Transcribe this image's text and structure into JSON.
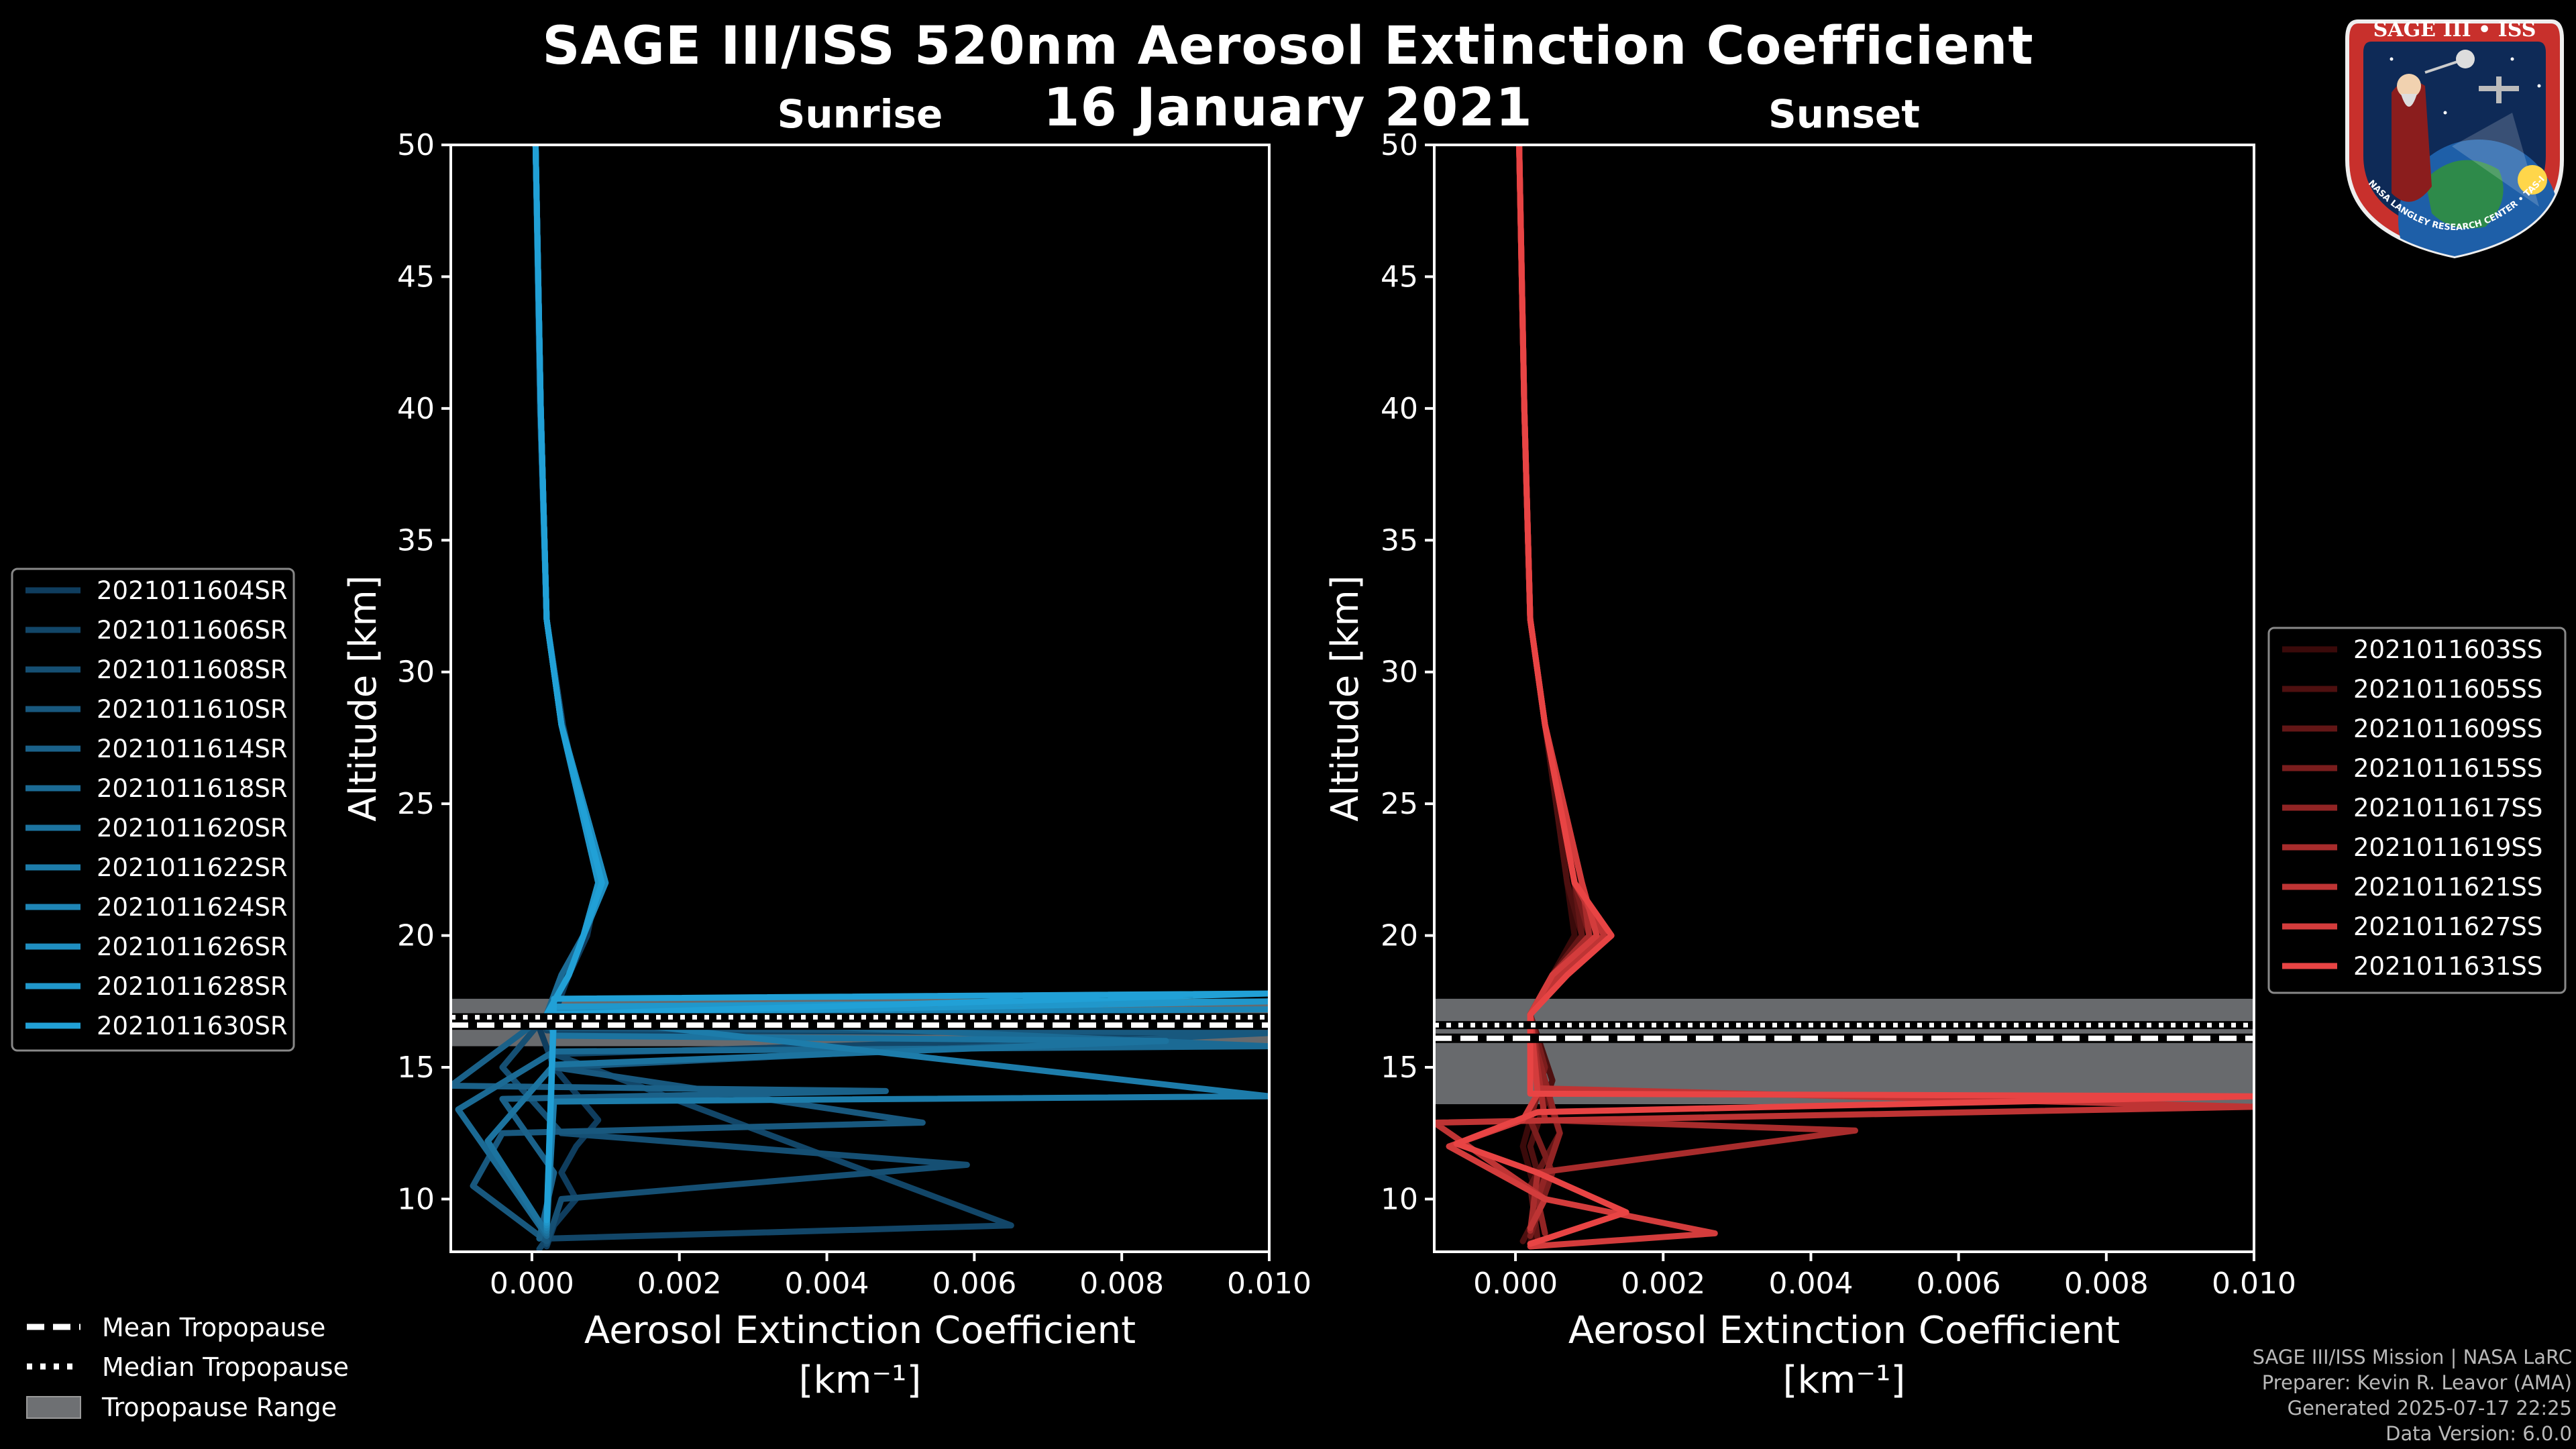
{
  "figure": {
    "title_line1": "SAGE III/ISS 520nm Aerosol Extinction Coefficient",
    "title_line2": "16 January 2021"
  },
  "logo": {
    "text_top": "SAGE III • ISS",
    "text_ring": "BALL • NASA LANGLEY RESEARCH CENTER • TAS-I • ESA"
  },
  "credits": {
    "line1": "SAGE III/ISS Mission | NASA LaRC",
    "line2": "Preparer: Kevin R. Leavor (AMA)",
    "line3": "Generated 2025-07-17 22:25",
    "line4": "Data Version: 6.0.0"
  },
  "tropopause_legend": {
    "mean": "Mean Tropopause",
    "median": "Median Tropopause",
    "range": "Tropopause Range"
  },
  "chart_data": [
    {
      "type": "line",
      "panel": "sunrise",
      "title": "Sunrise",
      "xlabel_line1": "Aerosol Extinction Coefficient",
      "xlabel_line2": "[km⁻¹]",
      "ylabel": "Altitude [km]",
      "xlim": [
        -0.0011,
        0.01
      ],
      "ylim": [
        8,
        50
      ],
      "xticks": [
        0,
        0.002,
        0.004,
        0.006,
        0.008,
        0.01
      ],
      "xtick_labels": [
        "0.000",
        "0.002",
        "0.004",
        "0.006",
        "0.008",
        "0.010"
      ],
      "yticks": [
        10,
        15,
        20,
        25,
        30,
        35,
        40,
        45,
        50
      ],
      "ytick_labels": [
        "10",
        "15",
        "20",
        "25",
        "30",
        "35",
        "40",
        "45",
        "50"
      ],
      "legend_position": "left",
      "tropopause": {
        "mean": 16.6,
        "median": 16.9,
        "range": [
          15.8,
          17.6
        ]
      },
      "series": [
        {
          "name": "2021011604SR",
          "color": "#0f3d5e",
          "x": [
            5e-05,
            0.00012,
            0.0002,
            0.0004,
            0.0009,
            0.00075,
            0.0005,
            0.0003,
            0.0001,
            0.0003,
            0.0009,
            0.0006,
            0.0004,
            0.0006,
            0.0003,
            0.0002
          ],
          "y": [
            50,
            40,
            32,
            28,
            22,
            20,
            18.5,
            17,
            16.5,
            15,
            13,
            12,
            11,
            10,
            9,
            8.2
          ]
        },
        {
          "name": "2021011606SR",
          "color": "#124668",
          "x": [
            5e-05,
            0.00011,
            0.0002,
            0.00042,
            0.0009,
            0.0007,
            0.0005,
            0.0002,
            0.0002,
            0.01,
            0.0003,
            0.0065,
            0.0002,
            0.0001
          ],
          "y": [
            50,
            40,
            32,
            28,
            22,
            20,
            18.5,
            17,
            16.4,
            16.3,
            15.5,
            9,
            8.5,
            8.1
          ]
        },
        {
          "name": "2021011608SR",
          "color": "#154f73",
          "x": [
            5e-05,
            0.00012,
            0.0002,
            0.0004,
            0.001,
            0.0007,
            0.0004,
            0.0002,
            -0.0004,
            0.0004,
            0.0059,
            0.0004,
            0.0002
          ],
          "y": [
            50,
            40,
            32,
            28,
            22,
            20,
            18.5,
            17,
            15,
            12.5,
            11.3,
            10,
            8.3
          ]
        },
        {
          "name": "2021011610SR",
          "color": "#18587e",
          "x": [
            5e-05,
            0.00012,
            0.0002,
            0.0004,
            0.00095,
            0.0007,
            0.0004,
            0.0002,
            0.0002,
            0.01,
            0.0003,
            0.0053,
            -0.0004,
            -0.0008,
            0.0002
          ],
          "y": [
            50,
            40,
            32,
            28,
            22,
            20,
            18.5,
            17,
            16.5,
            16.3,
            15,
            12.9,
            12.5,
            10.5,
            8.4
          ]
        },
        {
          "name": "2021011614SR",
          "color": "#1a6189",
          "x": [
            5e-05,
            0.00012,
            0.0002,
            0.0004,
            0.0009,
            0.0007,
            0.0005,
            0.0002,
            -0.0011,
            0.0048,
            -0.0004,
            0.0003,
            0.0001
          ],
          "y": [
            50,
            40,
            32,
            28,
            22,
            20,
            18.5,
            17,
            14.3,
            14.1,
            13.8,
            11,
            8.5
          ]
        },
        {
          "name": "2021011618SR",
          "color": "#1b6a94",
          "x": [
            5e-05,
            0.00012,
            0.0002,
            0.0004,
            0.001,
            0.0007,
            0.0004,
            0.0002,
            0.01,
            0.0003,
            -0.001,
            0.0002
          ],
          "y": [
            50,
            40,
            32,
            28,
            22,
            20,
            18.5,
            17,
            15.8,
            15.6,
            13.4,
            8.6
          ]
        },
        {
          "name": "2021011620SR",
          "color": "#1c739f",
          "x": [
            5e-05,
            0.00012,
            0.0002,
            0.0004,
            0.0009,
            0.0007,
            0.0005,
            0.0002,
            0.0003,
            0.0086,
            0.0003,
            -0.0006,
            0.0002
          ],
          "y": [
            50,
            40,
            32,
            28,
            22,
            20,
            18.5,
            17,
            16.2,
            16,
            15.1,
            12.2,
            8.7
          ]
        },
        {
          "name": "2021011622SR",
          "color": "#1d7caa",
          "x": [
            5e-05,
            0.00012,
            0.0002,
            0.0004,
            0.00095,
            0.0007,
            0.0005,
            0.0002,
            0.01,
            0.0003,
            0.0002
          ],
          "y": [
            50,
            40,
            32,
            28,
            22,
            20,
            18.5,
            17,
            13.9,
            13.7,
            8.8
          ]
        },
        {
          "name": "2021011624SR",
          "color": "#1e85b5",
          "x": [
            5e-05,
            0.00012,
            0.0002,
            0.0004,
            0.0009,
            0.0007,
            0.0005,
            0.0002,
            0.01,
            0.0003,
            0.0002
          ],
          "y": [
            50,
            40,
            32,
            28,
            22,
            20,
            18.5,
            17,
            17.2,
            17,
            8.9
          ]
        },
        {
          "name": "2021011626SR",
          "color": "#1f8ec0",
          "x": [
            5e-05,
            0.00012,
            0.0002,
            0.0004,
            0.001,
            0.0007,
            0.0005,
            0.0002,
            0.0031,
            0.0003,
            0.0002
          ],
          "y": [
            50,
            40,
            32,
            28,
            22,
            20,
            18.5,
            17,
            17.3,
            17.1,
            9
          ]
        },
        {
          "name": "2021011628SR",
          "color": "#2097cb",
          "x": [
            5e-05,
            0.00012,
            0.0002,
            0.0004,
            0.0009,
            0.0007,
            0.0005,
            0.0002,
            0.01,
            0.0003,
            0.0002
          ],
          "y": [
            50,
            40,
            32,
            28,
            22,
            20,
            18.5,
            17,
            17.5,
            17.3,
            9.1
          ]
        },
        {
          "name": "2021011630SR",
          "color": "#21a0d6",
          "x": [
            5e-05,
            0.00012,
            0.0002,
            0.0004,
            0.00095,
            0.0007,
            0.0005,
            0.0002,
            0.01,
            0.0003,
            0.0002
          ],
          "y": [
            50,
            40,
            32,
            28,
            22,
            20,
            18.5,
            17,
            17.8,
            17.6,
            9.2
          ]
        }
      ]
    },
    {
      "type": "line",
      "panel": "sunset",
      "title": "Sunset",
      "xlabel_line1": "Aerosol Extinction Coefficient",
      "xlabel_line2": "[km⁻¹]",
      "ylabel": "Altitude [km]",
      "xlim": [
        -0.0011,
        0.01
      ],
      "ylim": [
        8,
        50
      ],
      "xticks": [
        0,
        0.002,
        0.004,
        0.006,
        0.008,
        0.01
      ],
      "xtick_labels": [
        "0.000",
        "0.002",
        "0.004",
        "0.006",
        "0.008",
        "0.010"
      ],
      "yticks": [
        10,
        15,
        20,
        25,
        30,
        35,
        40,
        45,
        50
      ],
      "ytick_labels": [
        "10",
        "15",
        "20",
        "25",
        "30",
        "35",
        "40",
        "45",
        "50"
      ],
      "legend_position": "right",
      "tropopause": {
        "mean": 16.1,
        "median": 16.6,
        "range": [
          13.6,
          17.6
        ]
      },
      "series": [
        {
          "name": "2021011603SS",
          "color": "#3a0a0a",
          "x": [
            5e-05,
            0.00012,
            0.0002,
            0.0004,
            0.0007,
            0.0008,
            0.0005,
            0.0002,
            0.0004,
            0.0001,
            0.0003,
            0.0002
          ],
          "y": [
            50,
            40,
            32,
            28,
            22,
            20,
            18.5,
            17,
            15,
            12,
            10,
            8.3
          ]
        },
        {
          "name": "2021011605SS",
          "color": "#4e1010",
          "x": [
            5e-05,
            0.00012,
            0.0002,
            0.0004,
            0.0007,
            0.0009,
            0.0006,
            0.0002,
            0.0005,
            0.0002,
            0.0004,
            0.0001
          ],
          "y": [
            50,
            40,
            32,
            28,
            22,
            20,
            18.5,
            17,
            14.5,
            12,
            10,
            8.4
          ]
        },
        {
          "name": "2021011609SS",
          "color": "#631616",
          "x": [
            5e-05,
            0.00012,
            0.0002,
            0.0004,
            0.0008,
            0.0009,
            0.0005,
            0.0002,
            0.0003,
            0.0006,
            0.0002,
            0.0003
          ],
          "y": [
            50,
            40,
            32,
            28,
            22,
            20,
            18.5,
            17,
            15,
            12.5,
            10.5,
            8.5
          ]
        },
        {
          "name": "2021011615SS",
          "color": "#7a1d1d",
          "x": [
            5e-05,
            0.00012,
            0.0002,
            0.0004,
            0.0008,
            0.001,
            0.0006,
            0.0002,
            0.0004,
            0.0002,
            0.0005,
            0.0002
          ],
          "y": [
            50,
            40,
            32,
            28,
            22,
            20,
            18.5,
            17,
            15,
            13,
            11,
            8.6
          ]
        },
        {
          "name": "2021011617SS",
          "color": "#912424",
          "x": [
            5e-05,
            0.00012,
            0.0002,
            0.0004,
            0.0009,
            0.0011,
            0.0006,
            0.0002,
            0.0003,
            0.0006,
            0.0003,
            0.0004
          ],
          "y": [
            50,
            40,
            32,
            28,
            22,
            20,
            18.5,
            17,
            15.5,
            12.5,
            10,
            8.7
          ]
        },
        {
          "name": "2021011619SS",
          "color": "#a82c2c",
          "x": [
            5e-05,
            0.00012,
            0.0002,
            0.0004,
            0.0009,
            0.001,
            0.0005,
            0.0002,
            0.0004,
            0.0046,
            0.0003,
            0.0002
          ],
          "y": [
            50,
            40,
            32,
            28,
            22,
            20,
            18.5,
            17,
            13,
            12.6,
            11,
            8.8
          ]
        },
        {
          "name": "2021011621SS",
          "color": "#be3434",
          "x": [
            5e-05,
            0.00012,
            0.0002,
            0.0004,
            0.0008,
            0.0012,
            0.0006,
            0.0002,
            0.0003,
            0.01,
            -0.0011,
            0.0004,
            0.0002
          ],
          "y": [
            50,
            40,
            32,
            28,
            22,
            20,
            18.5,
            17,
            14.2,
            13.5,
            12.9,
            10,
            8.9
          ]
        },
        {
          "name": "2021011627SS",
          "color": "#d33c3c",
          "x": [
            5e-05,
            0.00012,
            0.0002,
            0.0004,
            0.0009,
            0.0011,
            0.0005,
            0.0002,
            0.0003,
            0.0001,
            -0.0009,
            0.0004,
            0.0027,
            0.0002
          ],
          "y": [
            50,
            40,
            32,
            28,
            22,
            20,
            18.5,
            17,
            14,
            13,
            12,
            10,
            8.7,
            8.2
          ]
        },
        {
          "name": "2021011631SS",
          "color": "#e84444",
          "x": [
            5e-05,
            0.00012,
            0.0002,
            0.0004,
            0.0008,
            0.0013,
            0.0007,
            0.0002,
            0.0002,
            0.01,
            0.0003,
            -0.0008,
            0.0003,
            0.0015,
            0.0002
          ],
          "y": [
            50,
            40,
            32,
            28,
            22,
            20,
            18.5,
            17,
            14,
            13.9,
            13.3,
            12.1,
            11,
            9.5,
            8.3
          ]
        }
      ]
    }
  ]
}
